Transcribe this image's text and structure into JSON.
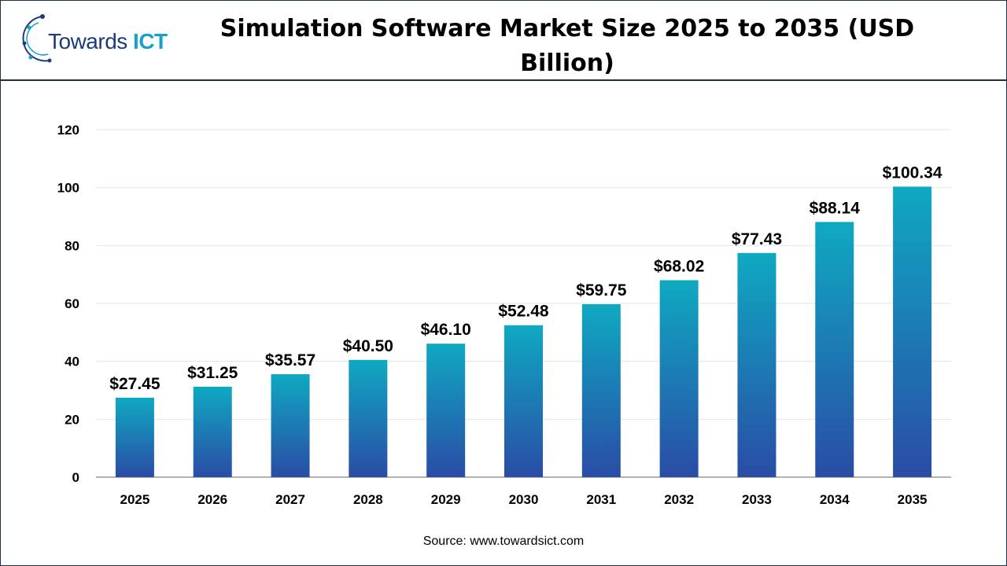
{
  "logo": {
    "word": "Towards ",
    "accent": "ICT"
  },
  "title": "Simulation Software Market Size 2025 to 2035 (USD Billion)",
  "source": "Source: www.towardsict.com",
  "colors": {
    "bar_top": "#0fa9c1",
    "bar_bottom": "#2a4ca6",
    "border": "#1f2f44",
    "grid": "#e6e6e6",
    "axis": "#999999"
  },
  "chart_data": {
    "type": "bar",
    "categories": [
      "2025",
      "2026",
      "2027",
      "2028",
      "2029",
      "2030",
      "2031",
      "2032",
      "2033",
      "2034",
      "2035"
    ],
    "values": [
      27.45,
      31.25,
      35.57,
      40.5,
      46.1,
      52.48,
      59.75,
      68.02,
      77.43,
      88.14,
      100.34
    ],
    "data_labels": [
      "$27.45",
      "$31.25",
      "$35.57",
      "$40.50",
      "$46.10",
      "$52.48",
      "$59.75",
      "$68.02",
      "$77.43",
      "$88.14",
      "$100.34"
    ],
    "title": "Simulation Software Market Size 2025 to 2035 (USD Billion)",
    "xlabel": "",
    "ylabel": "",
    "ylim": [
      0,
      120
    ],
    "yticks": [
      "0",
      "20",
      "40",
      "60",
      "80",
      "100",
      "120"
    ],
    "grid": true,
    "legend": "none"
  }
}
